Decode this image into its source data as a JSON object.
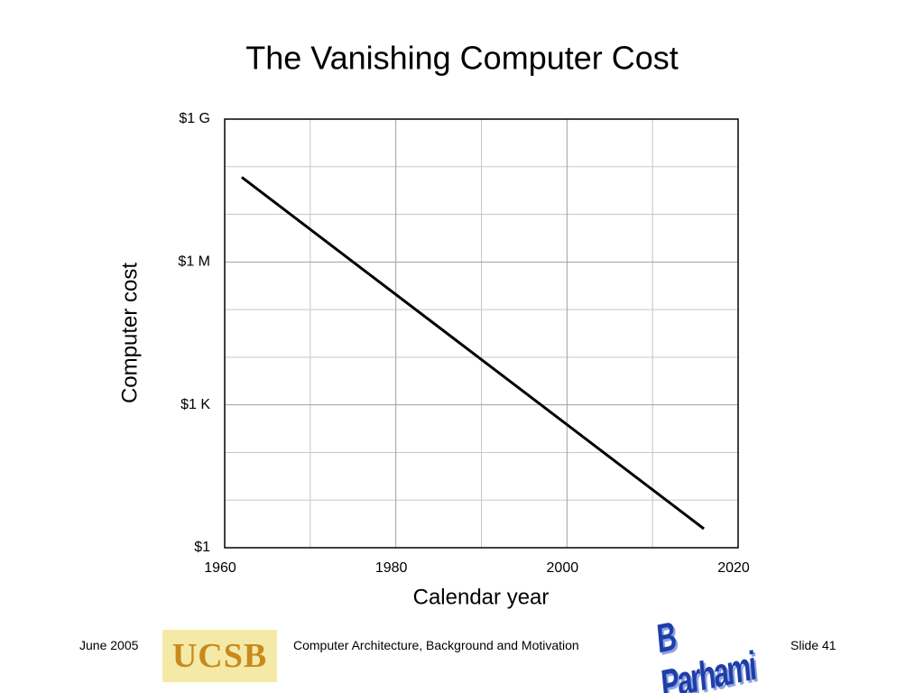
{
  "chart_data": {
    "type": "line",
    "title": "The Vanishing Computer Cost",
    "x_label": "Calendar year",
    "y_label": "Computer cost",
    "x": [
      1962,
      2016
    ],
    "series": [
      {
        "name": "Computer cost",
        "color": "#000000",
        "values": [
          60000000,
          2.5
        ]
      }
    ],
    "xlim": [
      1960,
      2020
    ],
    "xticks": [
      1960,
      1980,
      2000,
      2020
    ],
    "minor_xticks": [
      1970,
      1990,
      2010
    ],
    "ylim": [
      1,
      1000000000
    ],
    "y_log_scale": true,
    "yticks": [
      {
        "value": 1,
        "label": "$1"
      },
      {
        "value": 1000,
        "label": "$1 K"
      },
      {
        "value": 1000000,
        "label": "$1 M"
      },
      {
        "value": 1000000000,
        "label": "$1 G"
      }
    ],
    "minor_yticks": [
      10,
      100,
      10000,
      100000,
      10000000,
      100000000
    ],
    "grid": true
  },
  "footer": {
    "date": "June 2005",
    "logo_left": "UCSB",
    "course": "Computer Architecture, Background and Motivation",
    "logo_right": "B Parhami",
    "slide": "Slide 41"
  }
}
